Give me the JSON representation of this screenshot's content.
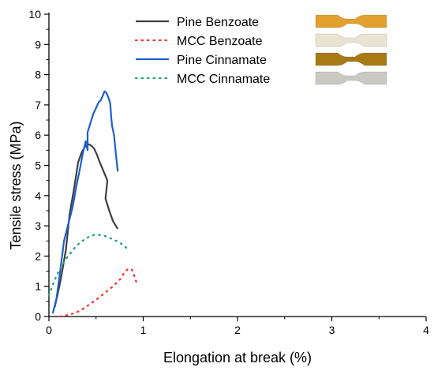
{
  "chart_data": {
    "type": "line",
    "xlabel": "Elongation at break (%)",
    "ylabel": "Tensile stress (MPa)",
    "xlim": [
      0,
      4
    ],
    "ylim": [
      0,
      10
    ],
    "x_ticks": [
      0,
      1,
      2,
      3,
      4
    ],
    "y_ticks": [
      0,
      1,
      2,
      3,
      4,
      5,
      6,
      7,
      8,
      9,
      10
    ],
    "grid": false,
    "legend_position": "top-right",
    "series": [
      {
        "name": "Pine Benzoate",
        "color": "#3f3f3f",
        "style": "solid",
        "sample_color": "#e2a12e",
        "x": [
          0.06,
          0.09,
          0.13,
          0.18,
          0.22,
          0.27,
          0.31,
          0.35,
          0.39,
          0.42,
          0.45,
          0.48,
          0.51,
          0.54,
          0.58,
          0.62,
          0.6,
          0.64,
          0.68,
          0.73
        ],
        "y": [
          0.3,
          0.7,
          1.3,
          2.2,
          3.4,
          4.3,
          5.1,
          5.45,
          5.65,
          5.7,
          5.65,
          5.55,
          5.35,
          5.1,
          4.8,
          4.5,
          3.9,
          3.5,
          3.15,
          2.9
        ]
      },
      {
        "name": "MCC Benzoate",
        "color": "#ff2a2a",
        "style": "dotted",
        "sample_color": "#e9e4d1",
        "x": [
          0.12,
          0.2,
          0.28,
          0.36,
          0.44,
          0.52,
          0.6,
          0.68,
          0.76,
          0.8,
          0.84,
          0.88,
          0.9,
          0.92,
          0.94
        ],
        "y": [
          0.0,
          0.05,
          0.12,
          0.25,
          0.42,
          0.6,
          0.8,
          1.0,
          1.25,
          1.45,
          1.58,
          1.55,
          1.4,
          1.2,
          1.05
        ]
      },
      {
        "name": "Pine Cinnamate",
        "color": "#1f5fcc",
        "style": "solid",
        "sample_color": "#a87a14",
        "x": [
          0.04,
          0.08,
          0.12,
          0.16,
          0.2,
          0.25,
          0.29,
          0.33,
          0.36,
          0.39,
          0.41,
          0.41,
          0.44,
          0.47,
          0.5,
          0.53,
          0.55,
          0.57,
          0.59,
          0.61,
          0.63,
          0.65,
          0.66,
          0.67,
          0.69,
          0.71,
          0.73
        ],
        "y": [
          0.1,
          0.6,
          1.5,
          2.5,
          3.0,
          3.6,
          4.3,
          4.9,
          5.4,
          5.8,
          5.5,
          6.1,
          6.4,
          6.7,
          6.9,
          7.1,
          7.15,
          7.3,
          7.45,
          7.4,
          7.25,
          7.05,
          6.6,
          6.3,
          6.0,
          5.4,
          4.8
        ]
      },
      {
        "name": "MCC Cinnamate",
        "color": "#1e9e7c",
        "style": "dotted",
        "sample_color": "#c9c9c2",
        "x": [
          0.0,
          0.04,
          0.08,
          0.13,
          0.18,
          0.23,
          0.28,
          0.33,
          0.38,
          0.43,
          0.48,
          0.53,
          0.58,
          0.63,
          0.68,
          0.73,
          0.78,
          0.83
        ],
        "y": [
          0.7,
          1.05,
          1.35,
          1.65,
          1.9,
          2.1,
          2.3,
          2.45,
          2.55,
          2.65,
          2.7,
          2.7,
          2.68,
          2.62,
          2.55,
          2.48,
          2.38,
          2.25
        ]
      }
    ]
  }
}
